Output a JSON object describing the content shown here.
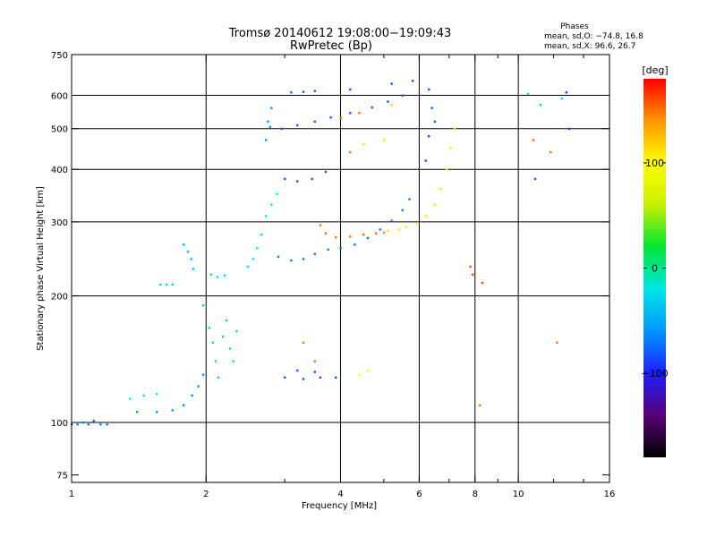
{
  "chart_data": {
    "type": "scatter",
    "title": "Tromsø 20140612 19:08:00−19:09:43",
    "subtitle": "RwPretec (Bp)",
    "stats": {
      "heading": "Phases",
      "line_o": "mean, sd,O: −74.8, 16.8",
      "line_x": "mean, sd,X:  96.6, 26.7"
    },
    "xlabel": "Frequency [MHz]",
    "ylabel": "Stationary phase Virtual Height [km]",
    "x_scale": "log",
    "y_scale": "log",
    "xlim": [
      1,
      16
    ],
    "ylim": [
      72,
      750
    ],
    "x_ticks": [
      {
        "value": 1,
        "label": "1",
        "grid": false
      },
      {
        "value": 2,
        "label": "2",
        "grid": true
      },
      {
        "value": 4,
        "label": "4",
        "grid": true
      },
      {
        "value": 6,
        "label": "6",
        "grid": true
      },
      {
        "value": 8,
        "label": "8",
        "grid": true
      },
      {
        "value": 10,
        "label": "10",
        "grid": true
      },
      {
        "value": 16,
        "label": "16",
        "grid": false
      }
    ],
    "x_minor_ticks": [
      3,
      5,
      7,
      9,
      12,
      14
    ],
    "y_ticks": [
      {
        "value": 75,
        "label": "75",
        "grid": false
      },
      {
        "value": 100,
        "label": "100",
        "grid": true
      },
      {
        "value": 200,
        "label": "200",
        "grid": true
      },
      {
        "value": 300,
        "label": "300",
        "grid": true
      },
      {
        "value": 400,
        "label": "400",
        "grid": true
      },
      {
        "value": 500,
        "label": "500",
        "grid": true
      },
      {
        "value": 600,
        "label": "600",
        "grid": true
      },
      {
        "value": 750,
        "label": "750",
        "grid": false
      }
    ],
    "colorbar": {
      "label": "[deg]",
      "range": [
        -180,
        180
      ],
      "ticks": [
        {
          "value": 100,
          "label": "100"
        },
        {
          "value": 0,
          "label": "0"
        },
        {
          "value": -100,
          "label": "−100"
        }
      ],
      "stops": [
        "#000000",
        "#5a0078",
        "#1e1eff",
        "#0096ff",
        "#00e6e6",
        "#00e632",
        "#c8f000",
        "#ffff00",
        "#ff9600",
        "#ff0000"
      ]
    },
    "grid": true,
    "legend": "none",
    "series": [
      {
        "points": [
          [
            1.0,
            99,
            -70
          ],
          [
            1.03,
            99,
            -70
          ],
          [
            1.06,
            100,
            -70
          ],
          [
            1.09,
            99,
            -70
          ],
          [
            1.12,
            101,
            -70
          ],
          [
            1.16,
            99,
            -70
          ],
          [
            1.2,
            99,
            -70
          ]
        ]
      },
      {
        "points": [
          [
            1.35,
            114,
            -20
          ],
          [
            1.45,
            116,
            -20
          ],
          [
            1.55,
            117,
            -20
          ]
        ]
      },
      {
        "points": [
          [
            1.4,
            106,
            -60
          ],
          [
            1.55,
            106,
            -60
          ],
          [
            1.68,
            107,
            -60
          ],
          [
            1.78,
            110,
            -60
          ],
          [
            1.86,
            116,
            -60
          ],
          [
            1.92,
            122,
            -60
          ],
          [
            1.97,
            130,
            -60
          ]
        ]
      },
      {
        "points": [
          [
            1.58,
            213,
            -30
          ],
          [
            1.63,
            213,
            -30
          ],
          [
            1.68,
            213,
            -30
          ]
        ]
      },
      {
        "points": [
          [
            1.78,
            265,
            -40
          ],
          [
            1.82,
            255,
            -40
          ],
          [
            1.85,
            245,
            -40
          ],
          [
            1.87,
            232,
            -40
          ]
        ]
      },
      {
        "points": [
          [
            1.97,
            190,
            -30
          ],
          [
            2.03,
            168,
            -30
          ],
          [
            2.07,
            155,
            -30
          ],
          [
            2.1,
            140,
            -30
          ],
          [
            2.13,
            128,
            -30
          ],
          [
            2.18,
            160,
            -30
          ],
          [
            2.22,
            175,
            -30
          ],
          [
            2.26,
            150,
            -30
          ],
          [
            2.3,
            140,
            -30
          ],
          [
            2.34,
            165,
            -30
          ]
        ]
      },
      {
        "points": [
          [
            2.05,
            225,
            -30
          ],
          [
            2.12,
            222,
            -30
          ],
          [
            2.2,
            224,
            -30
          ]
        ]
      },
      {
        "points": [
          [
            2.48,
            235,
            -20
          ],
          [
            2.55,
            245,
            -20
          ],
          [
            2.6,
            260,
            -20
          ],
          [
            2.66,
            280,
            -20
          ],
          [
            2.72,
            310,
            -20
          ],
          [
            2.8,
            330,
            -20
          ],
          [
            2.88,
            350,
            -20
          ]
        ]
      },
      {
        "points": [
          [
            2.72,
            470,
            -60
          ],
          [
            2.75,
            520,
            -60
          ],
          [
            2.78,
            505,
            -60
          ],
          [
            2.8,
            560,
            -60
          ]
        ]
      },
      {
        "points": [
          [
            2.9,
            248,
            -70
          ],
          [
            3.1,
            243,
            -70
          ],
          [
            3.3,
            245,
            -70
          ],
          [
            3.5,
            252,
            -70
          ],
          [
            3.75,
            258,
            -70
          ],
          [
            4.0,
            260,
            -70
          ],
          [
            4.3,
            265,
            -70
          ],
          [
            4.6,
            275,
            -70
          ],
          [
            4.9,
            288,
            -70
          ],
          [
            5.2,
            302,
            -70
          ],
          [
            5.5,
            320,
            -70
          ],
          [
            5.7,
            340,
            -70
          ]
        ]
      },
      {
        "points": [
          [
            3.6,
            295,
            150
          ],
          [
            3.7,
            282,
            150
          ],
          [
            3.9,
            276,
            150
          ],
          [
            4.2,
            277,
            150
          ],
          [
            4.5,
            280,
            150
          ],
          [
            4.8,
            282,
            150
          ],
          [
            5.0,
            283,
            140
          ]
        ]
      },
      {
        "points": [
          [
            5.1,
            286,
            110
          ],
          [
            5.4,
            288,
            110
          ],
          [
            5.6,
            292,
            110
          ],
          [
            5.9,
            298,
            110
          ],
          [
            6.2,
            310,
            110
          ],
          [
            6.5,
            330,
            110
          ],
          [
            6.7,
            360,
            110
          ],
          [
            6.9,
            400,
            110
          ],
          [
            7.05,
            450,
            110
          ],
          [
            7.2,
            500,
            110
          ]
        ]
      },
      {
        "points": [
          [
            3.0,
            380,
            -80
          ],
          [
            3.2,
            375,
            -80
          ],
          [
            3.45,
            380,
            -80
          ],
          [
            3.7,
            395,
            -80
          ]
        ]
      },
      {
        "points": [
          [
            2.95,
            500,
            -80
          ],
          [
            3.2,
            510,
            -80
          ],
          [
            3.5,
            520,
            -80
          ],
          [
            3.8,
            532,
            -80
          ],
          [
            4.2,
            545,
            -80
          ],
          [
            4.7,
            562,
            -80
          ],
          [
            5.1,
            580,
            -80
          ],
          [
            5.5,
            600,
            -80
          ]
        ]
      },
      {
        "points": [
          [
            3.1,
            610,
            -80
          ],
          [
            3.3,
            612,
            -80
          ],
          [
            3.5,
            615,
            -80
          ],
          [
            4.2,
            620,
            -80
          ],
          [
            5.2,
            640,
            -80
          ],
          [
            5.8,
            650,
            -80
          ]
        ]
      },
      {
        "points": [
          [
            4.2,
            440,
            150
          ],
          [
            4.5,
            460,
            110
          ],
          [
            5.0,
            470,
            110
          ]
        ]
      },
      {
        "points": [
          [
            4.0,
            530,
            150
          ],
          [
            4.4,
            545,
            150
          ],
          [
            5.2,
            570,
            110
          ]
        ]
      },
      {
        "points": [
          [
            3.0,
            128,
            -80
          ],
          [
            3.3,
            127,
            -80
          ],
          [
            3.6,
            128,
            -80
          ],
          [
            3.9,
            128,
            -80
          ],
          [
            3.2,
            133,
            -80
          ],
          [
            3.5,
            132,
            -80
          ]
        ]
      },
      {
        "points": [
          [
            3.3,
            155,
            150
          ],
          [
            3.5,
            140,
            150
          ]
        ]
      },
      {
        "points": [
          [
            4.4,
            130,
            100
          ],
          [
            4.6,
            133,
            100
          ]
        ]
      },
      {
        "points": [
          [
            6.3,
            620,
            -80
          ],
          [
            6.4,
            560,
            -80
          ],
          [
            6.5,
            520,
            -80
          ],
          [
            6.2,
            420,
            -80
          ],
          [
            6.3,
            480,
            -80
          ]
        ]
      },
      {
        "points": [
          [
            10.5,
            605,
            -30
          ],
          [
            11.2,
            570,
            -30
          ],
          [
            12.5,
            590,
            -30
          ],
          [
            12.8,
            610,
            -90
          ],
          [
            13.0,
            500,
            -90
          ],
          [
            11.8,
            440,
            150
          ]
        ]
      },
      {
        "points": [
          [
            7.8,
            235,
            160
          ],
          [
            7.9,
            225,
            160
          ],
          [
            8.3,
            215,
            160
          ],
          [
            8.2,
            110,
            150
          ],
          [
            10.8,
            470,
            150
          ],
          [
            10.9,
            380,
            -80
          ],
          [
            12.2,
            155,
            150
          ]
        ]
      }
    ]
  }
}
